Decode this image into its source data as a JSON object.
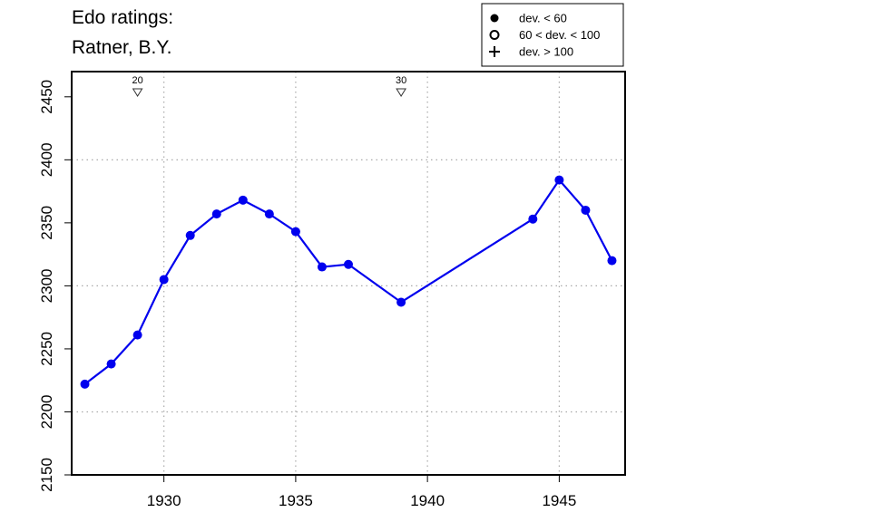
{
  "title_lines": [
    "Edo ratings:",
    "Ratner, B.Y."
  ],
  "legend": [
    {
      "symbol": "filled-circle",
      "label": "dev. < 60"
    },
    {
      "symbol": "open-circle",
      "label": "60 < dev. < 100"
    },
    {
      "symbol": "plus",
      "label": "dev. > 100"
    }
  ],
  "chart_data": {
    "type": "line",
    "xlim": [
      1926.5,
      1947.5
    ],
    "ylim": [
      2150,
      2470
    ],
    "x_ticks": [
      1930,
      1935,
      1940,
      1945
    ],
    "y_ticks": [
      2150,
      2200,
      2250,
      2300,
      2350,
      2400,
      2450
    ],
    "grid": true,
    "legend_position": "top-right",
    "series": [
      {
        "color": "#0000ee",
        "marker": "filled-circle",
        "x": [
          1927,
          1928,
          1929,
          1930,
          1931,
          1932,
          1933,
          1934,
          1935,
          1936,
          1937,
          1939,
          1944,
          1945,
          1946,
          1947
        ],
        "y": [
          2222,
          2238,
          2261,
          2305,
          2340,
          2357,
          2368,
          2357,
          2343,
          2315,
          2317,
          2287,
          2353,
          2384,
          2360,
          2320
        ]
      }
    ],
    "annotations": [
      {
        "x": 1929,
        "label": "20"
      },
      {
        "x": 1939,
        "label": "30"
      }
    ]
  }
}
